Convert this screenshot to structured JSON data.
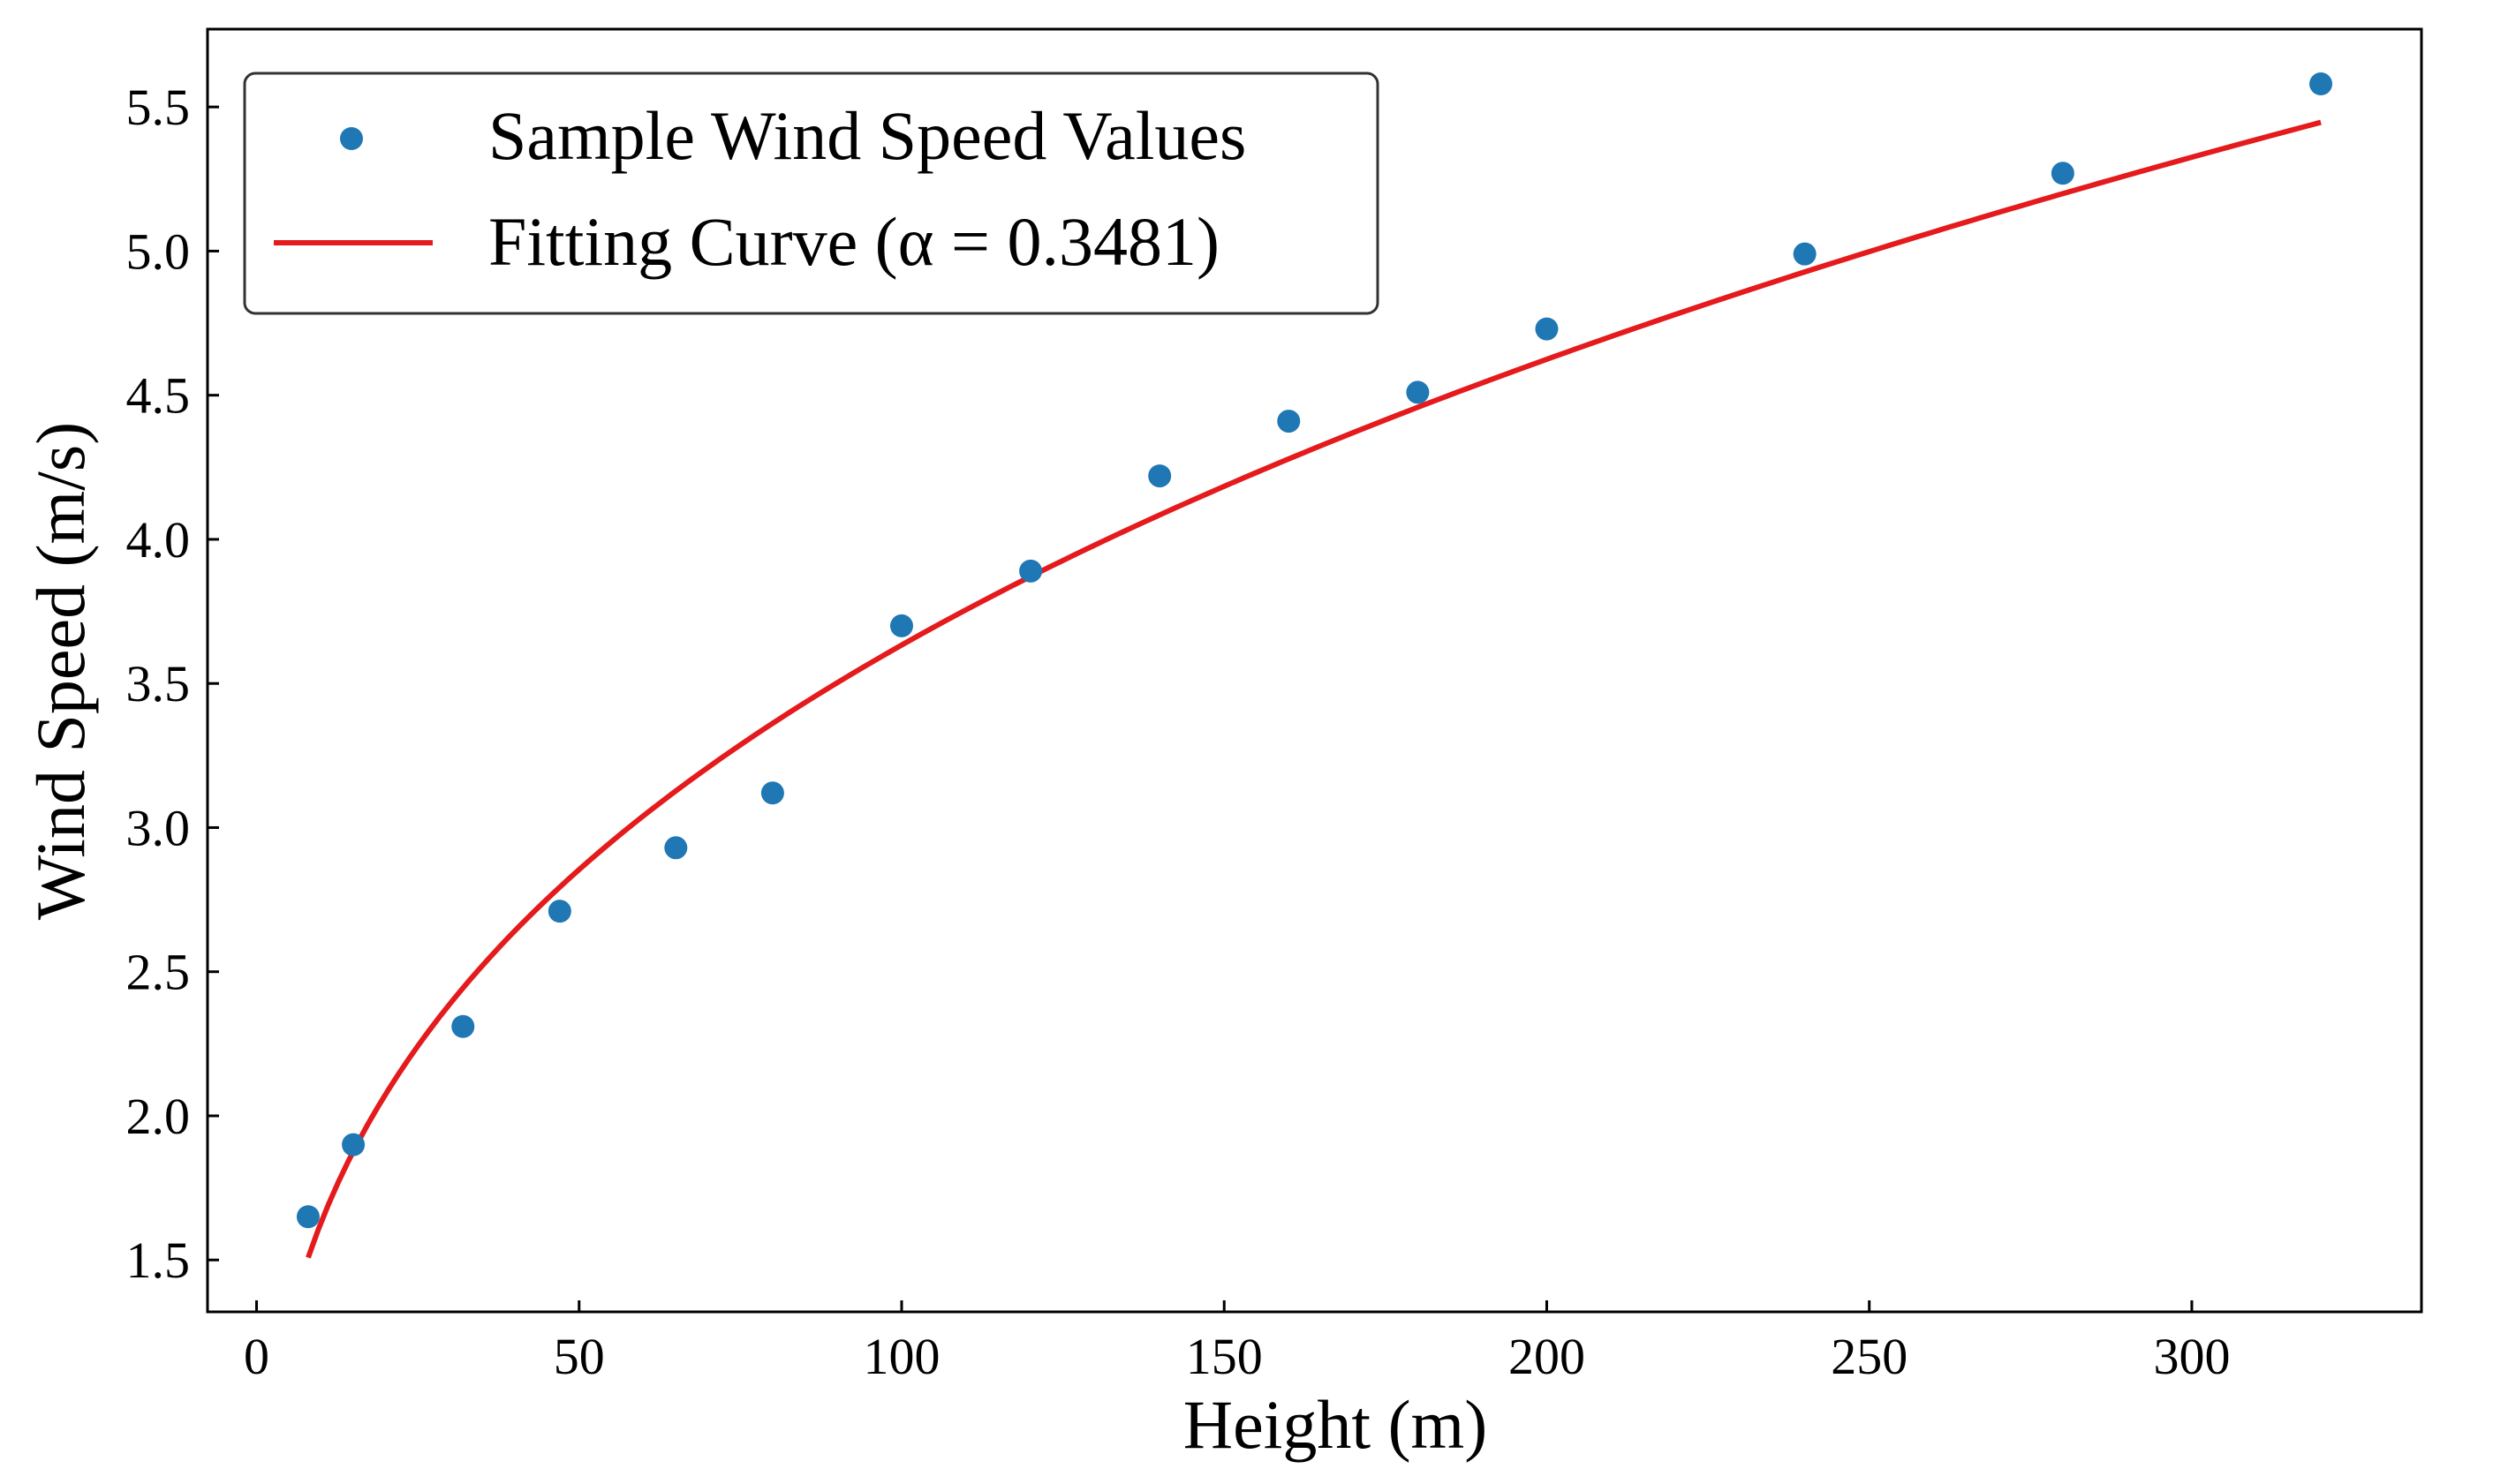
{
  "chart_data": {
    "type": "scatter",
    "title": "",
    "xlabel": "Height (m)",
    "ylabel": "Wind Speed (m/s)",
    "xlim": [
      -7.6,
      335.6
    ],
    "ylim": [
      1.32,
      5.77
    ],
    "xticks": [
      0,
      50,
      100,
      150,
      200,
      250,
      300
    ],
    "xtick_labels": [
      "0",
      "50",
      "100",
      "150",
      "200",
      "250",
      "300"
    ],
    "yticks": [
      1.5,
      2.0,
      2.5,
      3.0,
      3.5,
      4.0,
      4.5,
      5.0,
      5.5
    ],
    "ytick_labels": [
      "1.5",
      "2.0",
      "2.5",
      "3.0",
      "3.5",
      "4.0",
      "4.5",
      "5.0",
      "5.5"
    ],
    "grid": false,
    "legend_position": "top-left",
    "series": [
      {
        "name": "Sample Wind Speed Values",
        "kind": "scatter",
        "color": "#1f77b4",
        "x": [
          8,
          15,
          32,
          47,
          65,
          80,
          100,
          120,
          140,
          160,
          180,
          200,
          240,
          280,
          320
        ],
        "y": [
          1.65,
          1.9,
          2.31,
          2.71,
          2.93,
          3.12,
          3.7,
          3.89,
          4.22,
          4.41,
          4.51,
          4.73,
          4.99,
          5.27,
          5.58
        ]
      },
      {
        "name": "Fitting Curve (α = 0.3481)",
        "kind": "line",
        "color": "#e41a1c",
        "alpha": 0.3481,
        "ref_height": 10,
        "ref_speed": 1.63,
        "x_range": [
          8,
          320
        ]
      }
    ]
  }
}
